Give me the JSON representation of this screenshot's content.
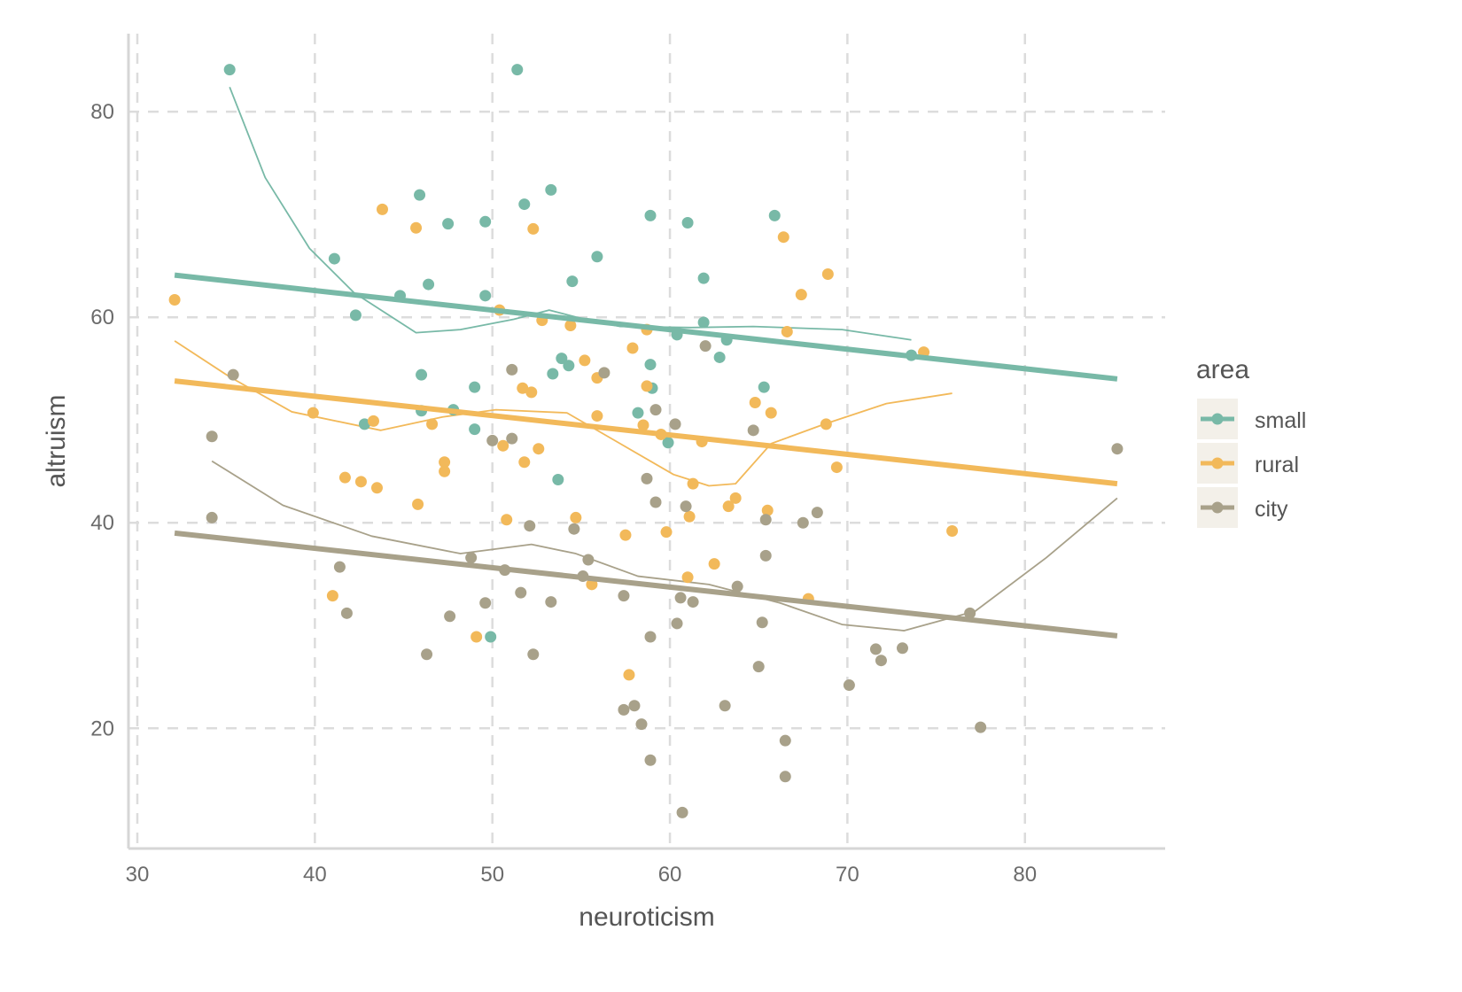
{
  "chart_data": {
    "type": "scatter",
    "xlabel": "neuroticism",
    "ylabel": "altruism",
    "xlim": [
      29.5,
      87.9
    ],
    "ylim": [
      8.3,
      87.6
    ],
    "xticks": [
      30,
      40,
      50,
      60,
      70,
      80
    ],
    "yticks": [
      20,
      40,
      60,
      80
    ],
    "grid": true,
    "legend": {
      "title": "area",
      "position": "right",
      "entries": [
        "small",
        "rural",
        "city"
      ]
    },
    "series": [
      {
        "name": "small",
        "color": "#78b9a7",
        "points": [
          [
            35.2,
            84.1
          ],
          [
            51.4,
            84.1
          ],
          [
            45.9,
            71.9
          ],
          [
            53.3,
            72.4
          ],
          [
            47.5,
            69.1
          ],
          [
            49.6,
            69.3
          ],
          [
            51.8,
            71.0
          ],
          [
            58.9,
            69.9
          ],
          [
            61.0,
            69.2
          ],
          [
            65.9,
            69.9
          ],
          [
            41.1,
            65.7
          ],
          [
            55.9,
            65.9
          ],
          [
            54.5,
            63.5
          ],
          [
            46.4,
            63.2
          ],
          [
            44.8,
            62.1
          ],
          [
            49.6,
            62.1
          ],
          [
            61.9,
            63.8
          ],
          [
            42.3,
            60.2
          ],
          [
            61.9,
            59.5
          ],
          [
            60.4,
            58.3
          ],
          [
            63.2,
            57.8
          ],
          [
            62.8,
            56.1
          ],
          [
            73.6,
            56.3
          ],
          [
            53.9,
            56.0
          ],
          [
            54.3,
            55.3
          ],
          [
            58.9,
            55.4
          ],
          [
            53.4,
            54.5
          ],
          [
            46.0,
            54.4
          ],
          [
            59.0,
            53.1
          ],
          [
            49.0,
            53.2
          ],
          [
            65.3,
            53.2
          ],
          [
            46.0,
            50.9
          ],
          [
            47.8,
            51.0
          ],
          [
            42.8,
            49.6
          ],
          [
            58.2,
            50.7
          ],
          [
            49.0,
            49.1
          ],
          [
            59.9,
            47.8
          ],
          [
            53.7,
            44.2
          ],
          [
            49.9,
            28.9
          ]
        ],
        "fit": [
          [
            32.1,
            64.1
          ],
          [
            85.2,
            54.0
          ]
        ],
        "smooth": [
          [
            35.2,
            82.4
          ],
          [
            37.2,
            73.6
          ],
          [
            39.7,
            66.7
          ],
          [
            42.2,
            62.4
          ],
          [
            45.7,
            58.5
          ],
          [
            48.2,
            58.8
          ],
          [
            51.2,
            59.8
          ],
          [
            53.2,
            60.7
          ],
          [
            55.2,
            59.8
          ],
          [
            57.2,
            59.1
          ],
          [
            61.2,
            59.0
          ],
          [
            64.7,
            59.1
          ],
          [
            69.7,
            58.8
          ],
          [
            73.6,
            57.8
          ]
        ]
      },
      {
        "name": "rural",
        "color": "#f2b95a",
        "points": [
          [
            32.1,
            61.7
          ],
          [
            43.8,
            70.5
          ],
          [
            45.7,
            68.7
          ],
          [
            52.3,
            68.6
          ],
          [
            66.4,
            67.8
          ],
          [
            68.9,
            64.2
          ],
          [
            67.4,
            62.2
          ],
          [
            50.4,
            60.7
          ],
          [
            52.8,
            59.7
          ],
          [
            54.4,
            59.2
          ],
          [
            58.7,
            58.8
          ],
          [
            66.6,
            58.6
          ],
          [
            74.3,
            56.6
          ],
          [
            57.9,
            57.0
          ],
          [
            55.2,
            55.8
          ],
          [
            55.9,
            54.1
          ],
          [
            58.7,
            53.3
          ],
          [
            51.7,
            53.1
          ],
          [
            52.2,
            52.7
          ],
          [
            39.9,
            50.7
          ],
          [
            55.9,
            50.4
          ],
          [
            64.8,
            51.7
          ],
          [
            65.7,
            50.7
          ],
          [
            43.3,
            49.9
          ],
          [
            46.6,
            49.6
          ],
          [
            58.5,
            49.5
          ],
          [
            59.5,
            48.6
          ],
          [
            61.8,
            47.9
          ],
          [
            68.8,
            49.6
          ],
          [
            50.6,
            47.5
          ],
          [
            52.6,
            47.2
          ],
          [
            51.8,
            45.9
          ],
          [
            47.3,
            45.9
          ],
          [
            47.3,
            45.0
          ],
          [
            41.7,
            44.4
          ],
          [
            42.6,
            44.0
          ],
          [
            43.5,
            43.4
          ],
          [
            69.4,
            45.4
          ],
          [
            61.3,
            43.8
          ],
          [
            63.7,
            42.4
          ],
          [
            63.3,
            41.6
          ],
          [
            65.5,
            41.2
          ],
          [
            45.8,
            41.8
          ],
          [
            50.8,
            40.3
          ],
          [
            54.7,
            40.5
          ],
          [
            61.1,
            40.6
          ],
          [
            59.8,
            39.1
          ],
          [
            57.5,
            38.8
          ],
          [
            75.9,
            39.2
          ],
          [
            62.5,
            36.0
          ],
          [
            61.0,
            34.7
          ],
          [
            55.6,
            34.0
          ],
          [
            41.0,
            32.9
          ],
          [
            67.8,
            32.6
          ],
          [
            49.1,
            28.9
          ],
          [
            57.7,
            25.2
          ]
        ],
        "fit": [
          [
            32.1,
            53.8
          ],
          [
            85.2,
            43.8
          ]
        ],
        "smooth": [
          [
            32.1,
            57.7
          ],
          [
            35.2,
            54.2
          ],
          [
            38.7,
            50.8
          ],
          [
            43.7,
            49.0
          ],
          [
            47.2,
            50.3
          ],
          [
            50.2,
            51.0
          ],
          [
            54.2,
            50.7
          ],
          [
            57.2,
            47.7
          ],
          [
            60.2,
            44.7
          ],
          [
            62.2,
            43.6
          ],
          [
            63.7,
            43.8
          ],
          [
            65.7,
            47.7
          ],
          [
            68.7,
            49.6
          ],
          [
            72.2,
            51.6
          ],
          [
            75.9,
            52.6
          ]
        ]
      },
      {
        "name": "city",
        "color": "#a8a18a",
        "points": [
          [
            35.4,
            54.4
          ],
          [
            34.2,
            48.4
          ],
          [
            34.2,
            40.5
          ],
          [
            51.1,
            54.9
          ],
          [
            56.3,
            54.6
          ],
          [
            62.0,
            57.2
          ],
          [
            59.2,
            51.0
          ],
          [
            60.3,
            49.6
          ],
          [
            64.7,
            49.0
          ],
          [
            51.1,
            48.2
          ],
          [
            50.0,
            48.0
          ],
          [
            85.2,
            47.2
          ],
          [
            58.7,
            44.3
          ],
          [
            59.2,
            42.0
          ],
          [
            60.9,
            41.6
          ],
          [
            68.3,
            41.0
          ],
          [
            67.5,
            40.0
          ],
          [
            65.4,
            40.3
          ],
          [
            54.6,
            39.4
          ],
          [
            52.1,
            39.7
          ],
          [
            41.4,
            35.7
          ],
          [
            48.8,
            36.6
          ],
          [
            55.4,
            36.4
          ],
          [
            65.4,
            36.8
          ],
          [
            50.7,
            35.4
          ],
          [
            55.1,
            34.8
          ],
          [
            63.8,
            33.8
          ],
          [
            51.6,
            33.2
          ],
          [
            57.4,
            32.9
          ],
          [
            60.6,
            32.7
          ],
          [
            61.3,
            32.3
          ],
          [
            53.3,
            32.3
          ],
          [
            49.6,
            32.2
          ],
          [
            41.8,
            31.2
          ],
          [
            47.6,
            30.9
          ],
          [
            76.9,
            31.2
          ],
          [
            65.2,
            30.3
          ],
          [
            60.4,
            30.2
          ],
          [
            58.9,
            28.9
          ],
          [
            71.6,
            27.7
          ],
          [
            73.1,
            27.8
          ],
          [
            71.9,
            26.6
          ],
          [
            46.3,
            27.2
          ],
          [
            52.3,
            27.2
          ],
          [
            65.0,
            26.0
          ],
          [
            70.1,
            24.2
          ],
          [
            57.4,
            21.8
          ],
          [
            58.0,
            22.2
          ],
          [
            63.1,
            22.2
          ],
          [
            58.4,
            20.4
          ],
          [
            77.5,
            20.1
          ],
          [
            58.9,
            16.9
          ],
          [
            66.5,
            18.8
          ],
          [
            66.5,
            15.3
          ],
          [
            60.7,
            11.8
          ]
        ],
        "fit": [
          [
            32.1,
            39.0
          ],
          [
            85.2,
            29.0
          ]
        ],
        "smooth": [
          [
            34.2,
            46.0
          ],
          [
            38.2,
            41.7
          ],
          [
            43.2,
            38.7
          ],
          [
            48.2,
            37.0
          ],
          [
            52.2,
            37.9
          ],
          [
            54.7,
            37.0
          ],
          [
            58.2,
            34.8
          ],
          [
            62.2,
            34.0
          ],
          [
            66.2,
            32.2
          ],
          [
            69.7,
            30.1
          ],
          [
            73.2,
            29.5
          ],
          [
            77.2,
            31.4
          ],
          [
            81.2,
            36.6
          ],
          [
            85.2,
            42.4
          ]
        ]
      }
    ]
  }
}
